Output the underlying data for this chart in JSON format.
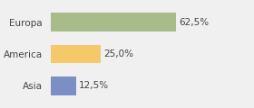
{
  "categories": [
    "Europa",
    "America",
    "Asia"
  ],
  "values": [
    62.5,
    25.0,
    12.5
  ],
  "bar_colors": [
    "#a8bc8a",
    "#f5c96a",
    "#7b8fc4"
  ],
  "labels": [
    "62,5%",
    "25,0%",
    "12,5%"
  ],
  "background_color": "#f0f0f0",
  "xlim": [
    0,
    100
  ],
  "bar_height": 0.58,
  "label_fontsize": 7.5,
  "tick_fontsize": 7.5,
  "figwidth": 2.8,
  "figheight": 1.2,
  "dpi": 100
}
